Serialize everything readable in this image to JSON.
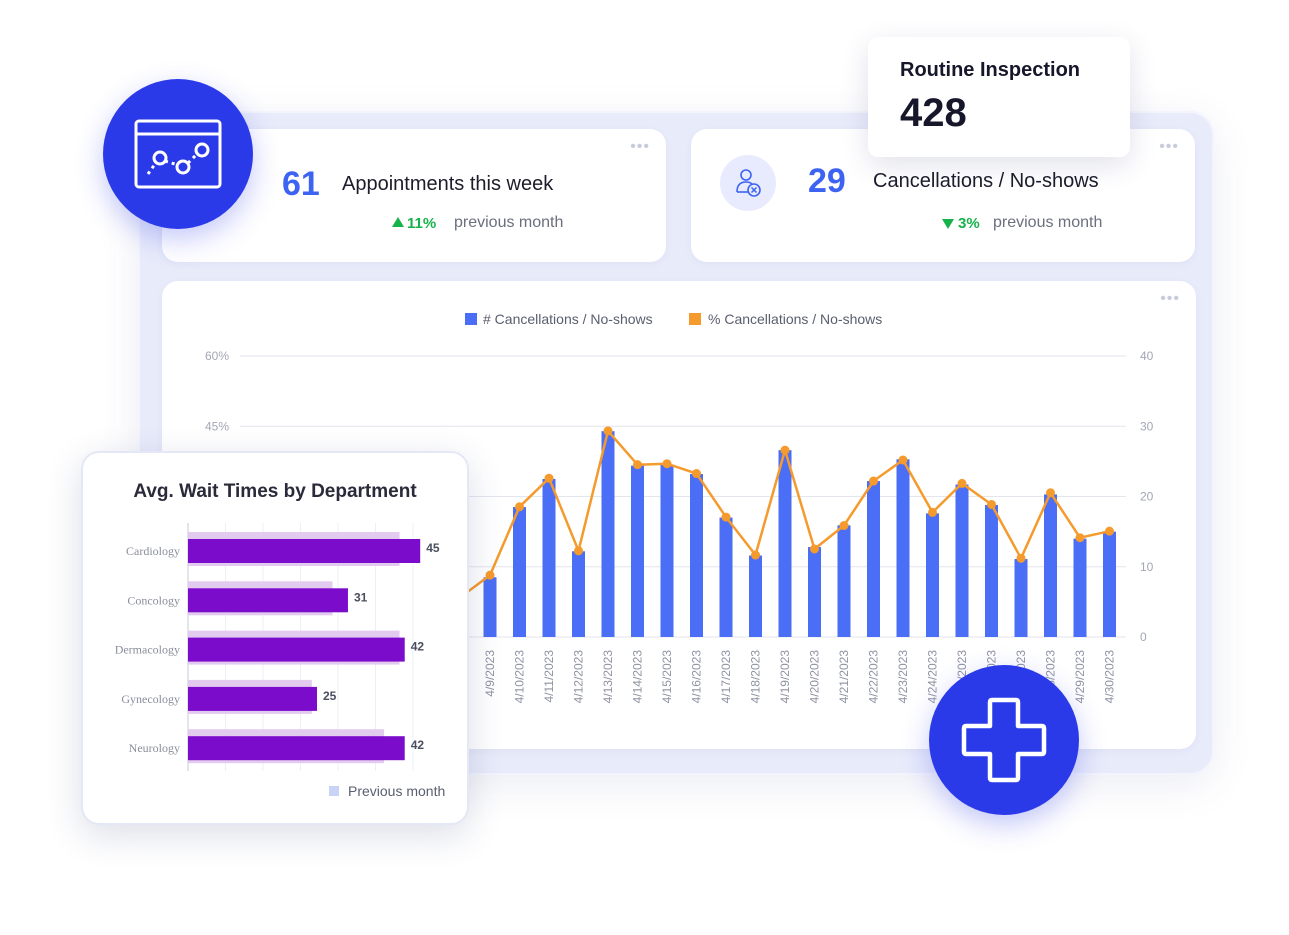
{
  "kpi_appointments": {
    "value": "61",
    "label": "Appointments this week",
    "delta": "11%",
    "delta_direction": "up",
    "caption": "previous month"
  },
  "kpi_cancellations": {
    "value": "29",
    "label": "Cancellations / No-shows",
    "delta": "3%",
    "delta_direction": "down",
    "caption": "previous month"
  },
  "routine_inspection": {
    "title": "Routine Inspection",
    "value": "428"
  },
  "menu_icon": "more-dots-icon",
  "icons": {
    "analytics": "chart-window-icon",
    "medical": "medical-cross-icon",
    "cancellation": "user-cancel-icon"
  },
  "colors": {
    "accent_blue": "#3d63f2",
    "badge_blue": "#2b3ae8",
    "bar_blue": "#4a6ef5",
    "line_orange": "#f59a2c",
    "delta_green": "#16b24a",
    "bar_purple": "#7b0ccc",
    "bar_previous": "#e3cbf0"
  },
  "chart_data": [
    {
      "type": "bar",
      "legend": [
        "# Cancellations / No-shows",
        "% Cancellations / No-shows"
      ],
      "left_axis_ticks": [
        "60%",
        "45%"
      ],
      "right_axis_ticks": [
        "40",
        "30",
        "20",
        "10",
        "0"
      ],
      "y_left_lim": [
        0,
        60
      ],
      "y_right_lim": [
        0,
        40
      ],
      "grid": true,
      "legend_position": "top-center",
      "categories": [
        "4/9/2023",
        "4/10/2023",
        "4/11/2023",
        "4/12/2023",
        "4/13/2023",
        "4/14/2023",
        "4/15/2023",
        "4/16/2023",
        "4/17/2023",
        "4/18/2023",
        "4/19/2023",
        "4/20/2023",
        "4/21/2023",
        "4/22/2023",
        "4/23/2023",
        "4/24/2023",
        "4/25/2023",
        "4/26/2023",
        "4/27/2023",
        "4/28/2023",
        "4/29/2023",
        "4/30/2023"
      ],
      "series": [
        {
          "name": "# Cancellations / No-shows",
          "type": "bar",
          "axis": "right",
          "values": [
            8.5,
            18.5,
            22.5,
            12.2,
            29.3,
            24.4,
            24.5,
            23.2,
            17,
            11.6,
            26.6,
            12.8,
            15.9,
            22.2,
            25.3,
            17.6,
            21.7,
            18.8,
            11.1,
            20.3,
            14,
            15
          ]
        },
        {
          "name": "% Cancellations / No-shows",
          "type": "line",
          "axis": "left",
          "values": [
            13.2,
            27.8,
            33.9,
            18.4,
            44,
            36.8,
            37,
            34.9,
            25.6,
            17.5,
            39.9,
            18.8,
            23.8,
            33.3,
            37.8,
            26.6,
            32.8,
            28.3,
            16.8,
            30.8,
            21.2,
            22.6
          ]
        }
      ]
    },
    {
      "type": "bar",
      "orientation": "horizontal",
      "title": "Avg. Wait Times by Department",
      "categories": [
        "Cardiology",
        "Concology",
        "Dermacology",
        "Gynecology",
        "Neurology"
      ],
      "xlim": [
        0,
        50
      ],
      "legend_position": "bottom-right",
      "series": [
        {
          "name": "",
          "values": [
            45,
            31,
            42,
            25,
            42
          ]
        },
        {
          "name": "Previous month",
          "values": [
            41,
            28,
            41,
            24,
            38
          ]
        }
      ]
    }
  ]
}
